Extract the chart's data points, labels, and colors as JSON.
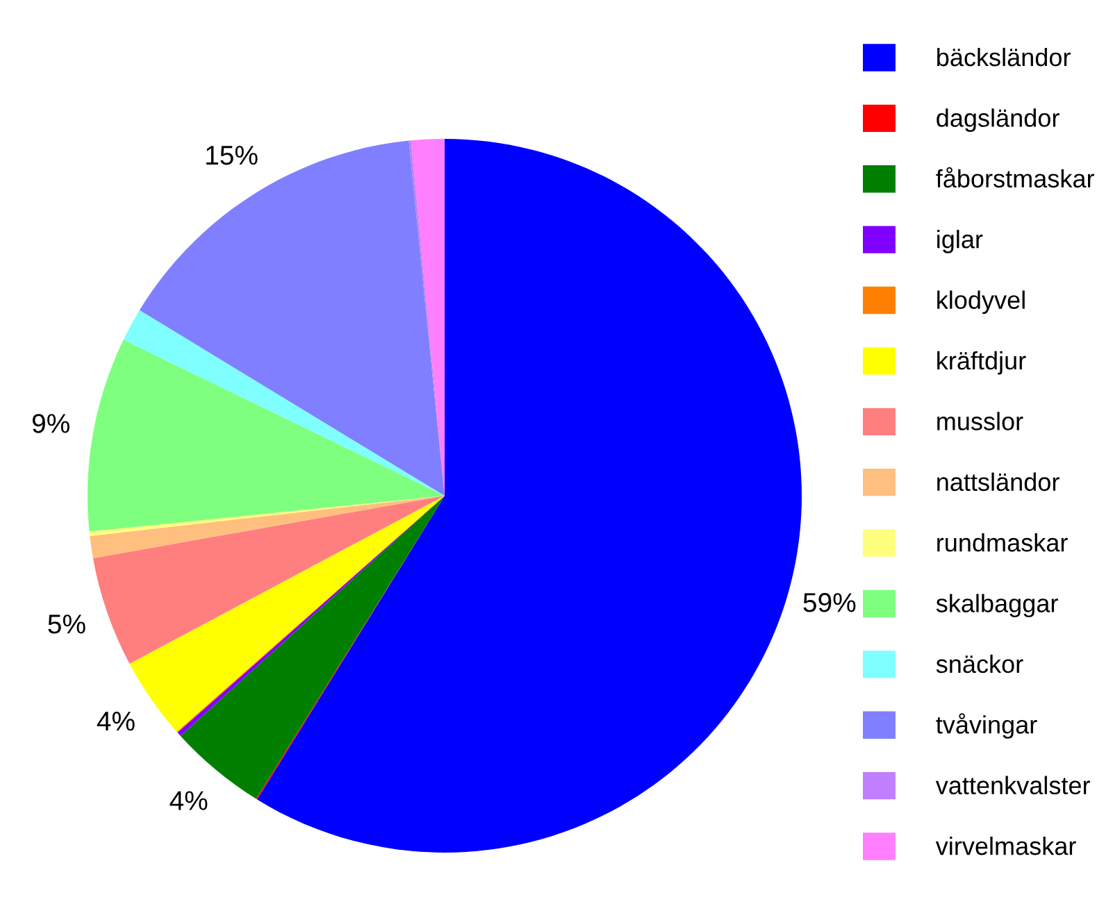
{
  "chart_data": {
    "type": "pie",
    "categories": [
      "bäcksländor",
      "dagsländor",
      "fåborstmaskar",
      "iglar",
      "klodyvel",
      "kräftdjur",
      "musslor",
      "nattsländor",
      "rundmaskar",
      "skalbaggar",
      "snäckor",
      "tvåvingar",
      "vattenkvalster",
      "virvelmaskar"
    ],
    "values": [
      58.8,
      0.05,
      4.4,
      0.2,
      0.05,
      3.7,
      5.0,
      1.0,
      0.2,
      8.8,
      1.5,
      14.7,
      0.1,
      1.5
    ],
    "colors": [
      "#0000ff",
      "#ff0000",
      "#007f00",
      "#7f00ff",
      "#ff7f00",
      "#ffff00",
      "#ff7f7f",
      "#ffbf7f",
      "#ffff7f",
      "#7fff7f",
      "#7fffff",
      "#7f7fff",
      "#bf7fff",
      "#ff7fff"
    ],
    "value_labels": [
      "59%",
      null,
      "4%",
      null,
      null,
      "4%",
      "5%",
      null,
      null,
      "9%",
      null,
      "15%",
      null,
      null
    ],
    "legend": "right"
  }
}
